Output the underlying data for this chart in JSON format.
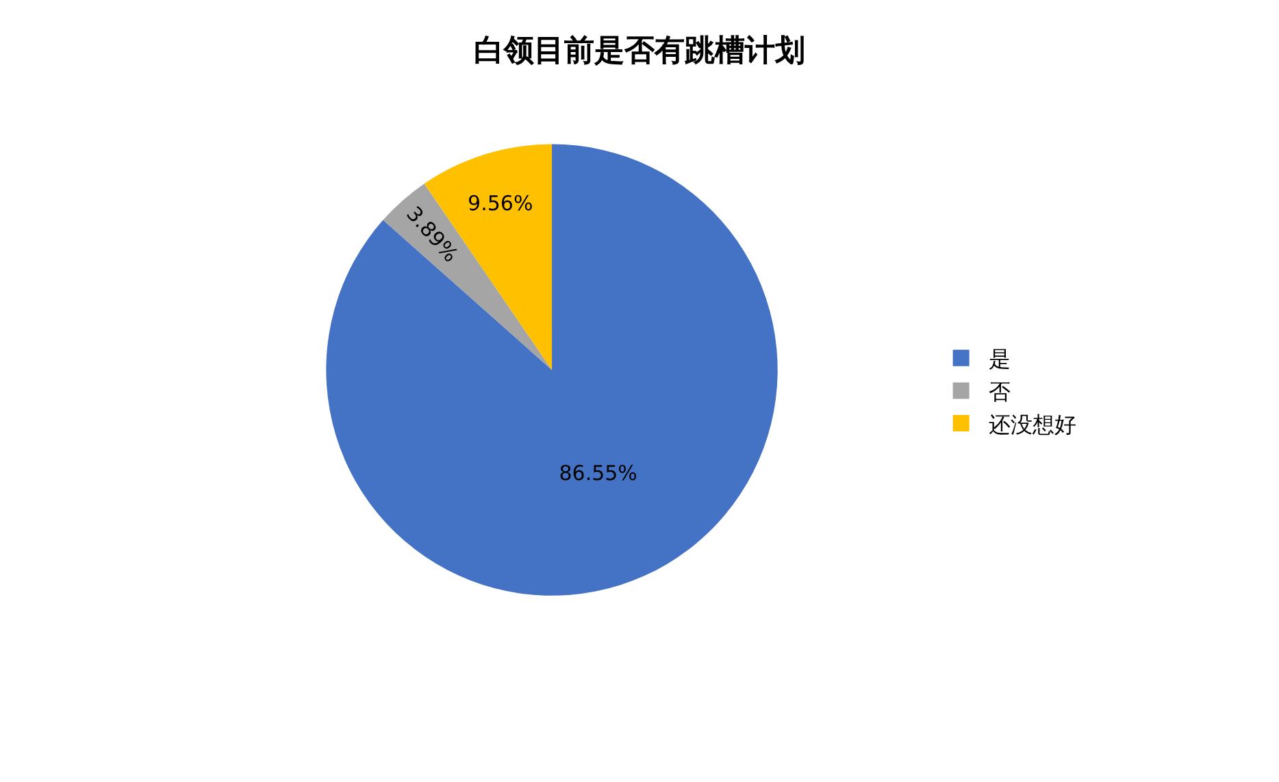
{
  "chart_data": {
    "type": "pie",
    "title": "白领目前是否有跳槽计划",
    "categories": [
      "是",
      "否",
      "还没想好"
    ],
    "values": [
      86.55,
      3.89,
      9.56
    ],
    "colors": [
      "#4472c4",
      "#a5a5a5",
      "#ffc000"
    ],
    "value_labels": [
      "86.55%",
      "3.89%",
      "9.56%"
    ],
    "legend": "right"
  }
}
